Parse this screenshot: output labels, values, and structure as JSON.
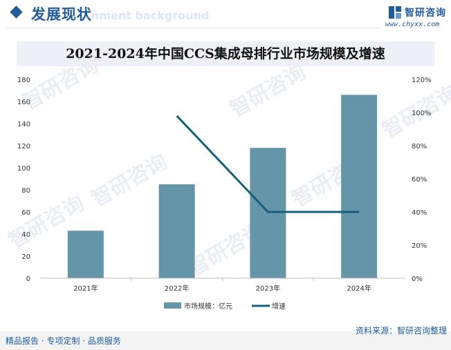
{
  "header": {
    "title": "发展现状",
    "watermark_text": "nment background",
    "brand_name": "智研咨询",
    "brand_url": "www.chyxx.com"
  },
  "footer": {
    "left": "精品报告 · 专项定制 · 品质服务",
    "source": "资料来源：智研咨询整理"
  },
  "colors": {
    "bar": "#6495a8",
    "line": "#14607a",
    "brand": "#1f5c99"
  },
  "chart_data": {
    "type": "bar",
    "title": "2021-2024年中国CCS集成母排行业市场规模及增速",
    "categories": [
      "2021年",
      "2022年",
      "2023年",
      "2024年"
    ],
    "series": [
      {
        "name": "市场规模：亿元",
        "type": "bar",
        "axis": "left",
        "values": [
          43,
          85,
          118,
          166
        ]
      },
      {
        "name": "增速",
        "type": "line",
        "axis": "right",
        "values": [
          null,
          98,
          40,
          40
        ]
      }
    ],
    "y_left": {
      "min": 0,
      "max": 180,
      "ticks": [
        "0",
        "20",
        "40",
        "60",
        "80",
        "100",
        "120",
        "140",
        "160",
        "180"
      ]
    },
    "y_right": {
      "min": 0,
      "max": 120,
      "ticks": [
        "0%",
        "20%",
        "40%",
        "60%",
        "80%",
        "100%",
        "120%"
      ]
    },
    "grid": false,
    "legend_position": "bottom-center"
  }
}
